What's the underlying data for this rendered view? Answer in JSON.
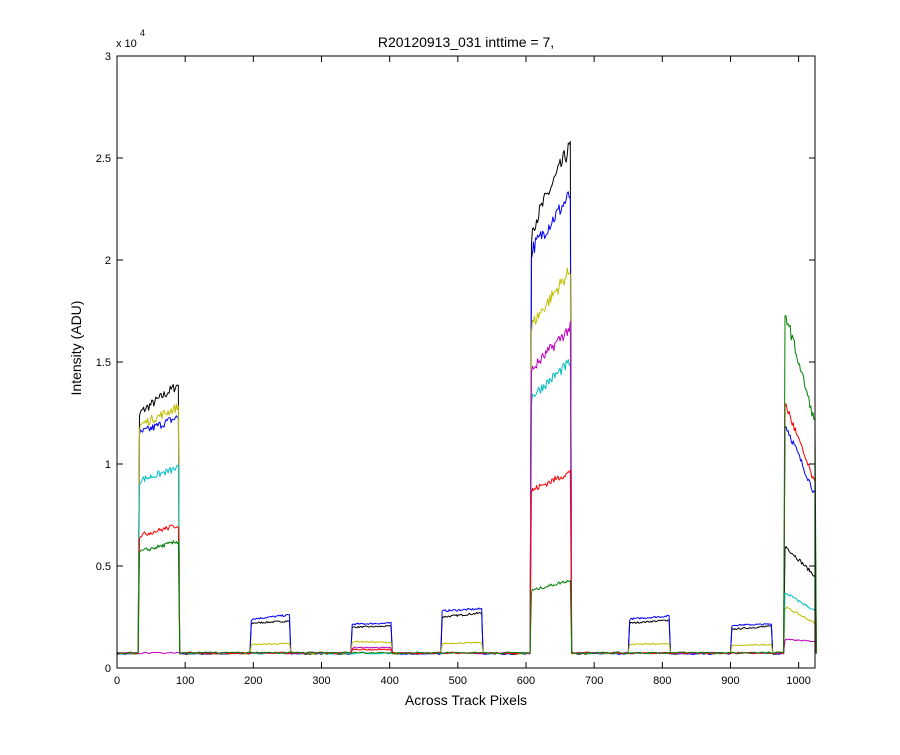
{
  "chart_data": {
    "type": "line",
    "title": "R20120913_031 inttime = 7,",
    "xlabel": "Across Track Pixels",
    "ylabel": "Intensity (ADU)",
    "xlim": [
      0,
      1024
    ],
    "ylim": [
      0,
      30000
    ],
    "x_ticks": [
      0,
      100,
      200,
      300,
      400,
      500,
      600,
      700,
      800,
      900,
      1000
    ],
    "x_tick_labels": [
      "0",
      "100",
      "200",
      "300",
      "400",
      "500",
      "600",
      "700",
      "800",
      "900",
      "1000"
    ],
    "y_ticks": [
      0,
      5000,
      10000,
      15000,
      20000,
      25000,
      30000
    ],
    "y_tick_labels": [
      "0",
      "0.5",
      "1",
      "1.5",
      "2",
      "2.5",
      "3"
    ],
    "y_multiplier_label": "x 10",
    "y_multiplier_exponent": "4",
    "grid": false,
    "legend": "none",
    "baseline": 700,
    "series": [
      {
        "color": "#000000",
        "segments": [
          {
            "x0": 33,
            "x1": 90,
            "start": 12500,
            "end": 13900
          },
          {
            "x0": 197,
            "x1": 253,
            "start": 2200,
            "end": 2300
          },
          {
            "x0": 345,
            "x1": 402,
            "start": 2000,
            "end": 2050
          },
          {
            "x0": 477,
            "x1": 535,
            "start": 2500,
            "end": 2700
          },
          {
            "x0": 608,
            "x1": 665,
            "start": 21500,
            "end": 25600
          },
          {
            "x0": 752,
            "x1": 810,
            "start": 2200,
            "end": 2350
          },
          {
            "x0": 902,
            "x1": 960,
            "start": 1900,
            "end": 2050
          },
          {
            "x0": 980,
            "x1": 1024,
            "start": 6000,
            "end": 4500
          }
        ]
      },
      {
        "color": "#0000ff",
        "segments": [
          {
            "x0": 33,
            "x1": 90,
            "start": 11500,
            "end": 12300
          },
          {
            "x0": 197,
            "x1": 253,
            "start": 2400,
            "end": 2600
          },
          {
            "x0": 345,
            "x1": 402,
            "start": 2150,
            "end": 2200
          },
          {
            "x0": 477,
            "x1": 535,
            "start": 2800,
            "end": 2900
          },
          {
            "x0": 608,
            "x1": 665,
            "start": 20500,
            "end": 23200
          },
          {
            "x0": 752,
            "x1": 810,
            "start": 2400,
            "end": 2550
          },
          {
            "x0": 902,
            "x1": 960,
            "start": 2100,
            "end": 2150
          },
          {
            "x0": 980,
            "x1": 1024,
            "start": 12000,
            "end": 8500
          }
        ]
      },
      {
        "color": "#bfbf00",
        "segments": [
          {
            "x0": 33,
            "x1": 90,
            "start": 11900,
            "end": 12800
          },
          {
            "x0": 197,
            "x1": 253,
            "start": 1150,
            "end": 1200
          },
          {
            "x0": 345,
            "x1": 402,
            "start": 1300,
            "end": 1250
          },
          {
            "x0": 477,
            "x1": 535,
            "start": 1200,
            "end": 1250
          },
          {
            "x0": 608,
            "x1": 665,
            "start": 16800,
            "end": 19500
          },
          {
            "x0": 752,
            "x1": 810,
            "start": 1150,
            "end": 1200
          },
          {
            "x0": 902,
            "x1": 960,
            "start": 1100,
            "end": 1150
          },
          {
            "x0": 980,
            "x1": 1024,
            "start": 3000,
            "end": 2200
          }
        ]
      },
      {
        "color": "#00bfbf",
        "segments": [
          {
            "x0": 33,
            "x1": 90,
            "start": 9200,
            "end": 9800
          },
          {
            "x0": 608,
            "x1": 665,
            "start": 13300,
            "end": 15000
          },
          {
            "x0": 980,
            "x1": 1024,
            "start": 3700,
            "end": 2800
          }
        ]
      },
      {
        "color": "#bf00bf",
        "segments": [
          {
            "x0": 345,
            "x1": 402,
            "start": 1000,
            "end": 1000
          },
          {
            "x0": 608,
            "x1": 665,
            "start": 14600,
            "end": 16700
          },
          {
            "x0": 980,
            "x1": 1024,
            "start": 1400,
            "end": 1300
          }
        ]
      },
      {
        "color": "#ff0000",
        "segments": [
          {
            "x0": 33,
            "x1": 90,
            "start": 6500,
            "end": 7000
          },
          {
            "x0": 345,
            "x1": 402,
            "start": 900,
            "end": 900
          },
          {
            "x0": 608,
            "x1": 665,
            "start": 8700,
            "end": 9600
          },
          {
            "x0": 980,
            "x1": 1024,
            "start": 13000,
            "end": 9000
          }
        ]
      },
      {
        "color": "#008000",
        "segments": [
          {
            "x0": 33,
            "x1": 90,
            "start": 5700,
            "end": 6200
          },
          {
            "x0": 608,
            "x1": 665,
            "start": 3800,
            "end": 4300
          },
          {
            "x0": 980,
            "x1": 1024,
            "start": 17500,
            "end": 12000
          }
        ]
      }
    ]
  }
}
